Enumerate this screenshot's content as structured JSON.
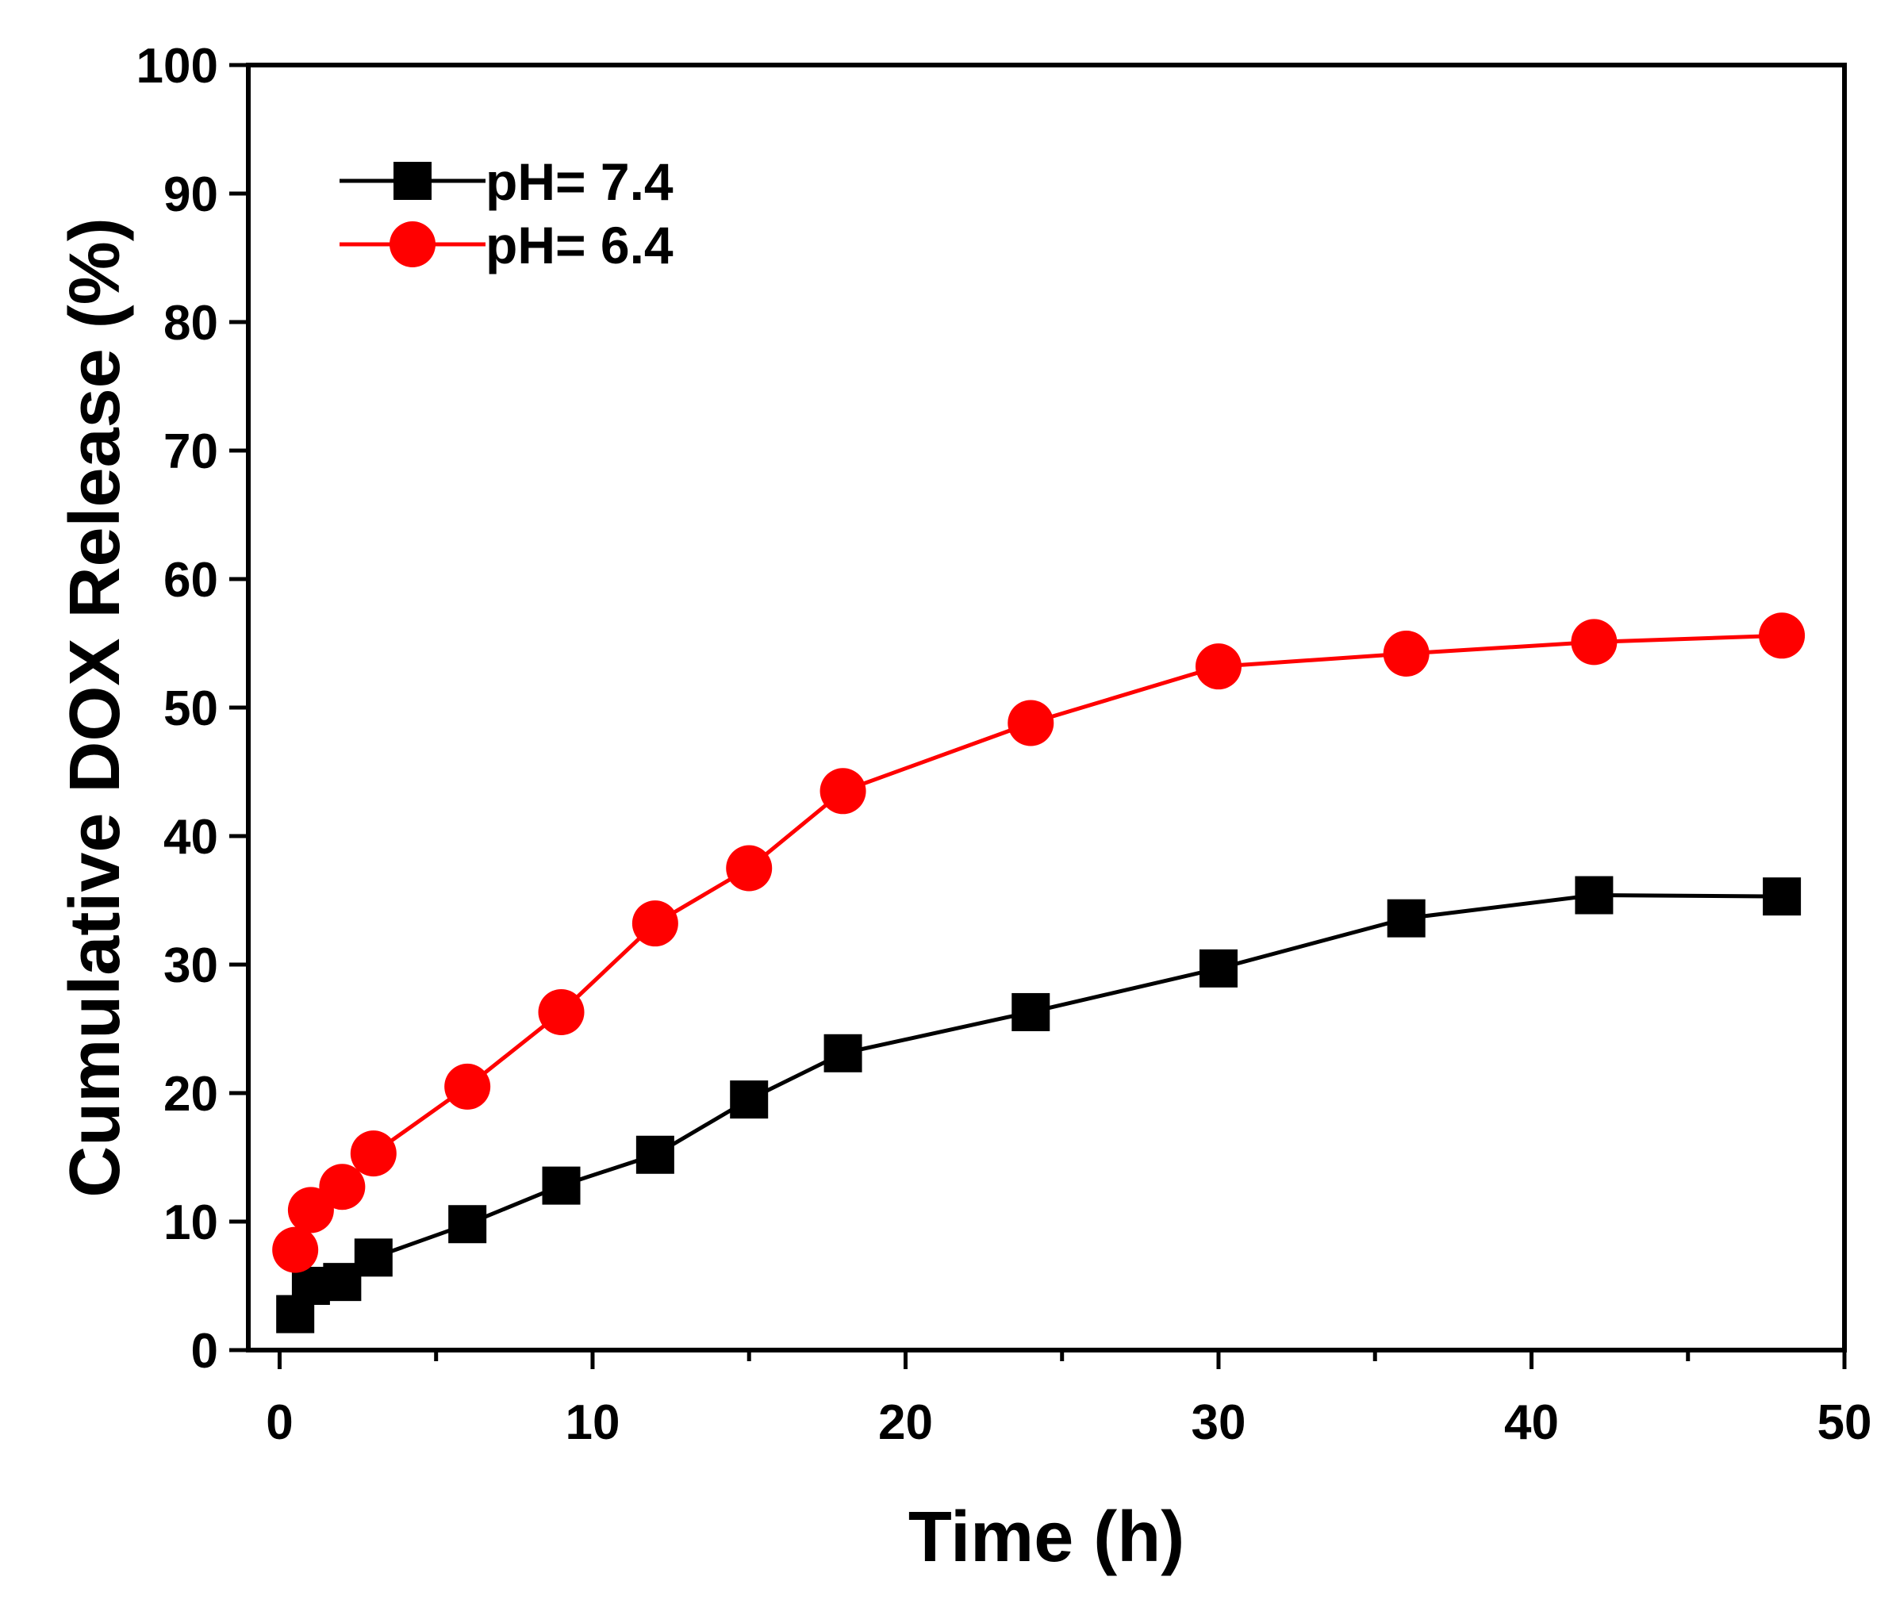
{
  "chart_data": {
    "type": "line",
    "title": "",
    "xlabel": "Time (h)",
    "ylabel": "Cumulative DOX Release (%)",
    "xlim": [
      -1,
      50
    ],
    "ylim": [
      0,
      100
    ],
    "xticks": [
      0,
      10,
      20,
      30,
      40,
      50
    ],
    "xticks_minor": [
      5,
      15,
      25,
      35,
      45
    ],
    "yticks": [
      0,
      10,
      20,
      30,
      40,
      50,
      60,
      70,
      80,
      90,
      100
    ],
    "grid": false,
    "legend_position": "top-left",
    "series": [
      {
        "name": "pH= 7.4",
        "color": "#000000",
        "marker": "square",
        "x": [
          0.5,
          1,
          2,
          3,
          6,
          9,
          12,
          15,
          18,
          24,
          30,
          36,
          42,
          48
        ],
        "y": [
          2.8,
          5.0,
          5.3,
          7.2,
          9.8,
          12.8,
          15.2,
          19.5,
          23.1,
          26.3,
          29.7,
          33.6,
          35.4,
          35.3
        ]
      },
      {
        "name": "pH= 6.4",
        "color": "#ff0000",
        "marker": "circle",
        "x": [
          0.5,
          1,
          2,
          3,
          6,
          9,
          12,
          15,
          18,
          24,
          30,
          36,
          42,
          48
        ],
        "y": [
          7.8,
          10.9,
          12.7,
          15.3,
          20.5,
          26.3,
          33.2,
          37.5,
          43.5,
          48.8,
          53.2,
          54.2,
          55.1,
          55.6
        ]
      }
    ]
  }
}
